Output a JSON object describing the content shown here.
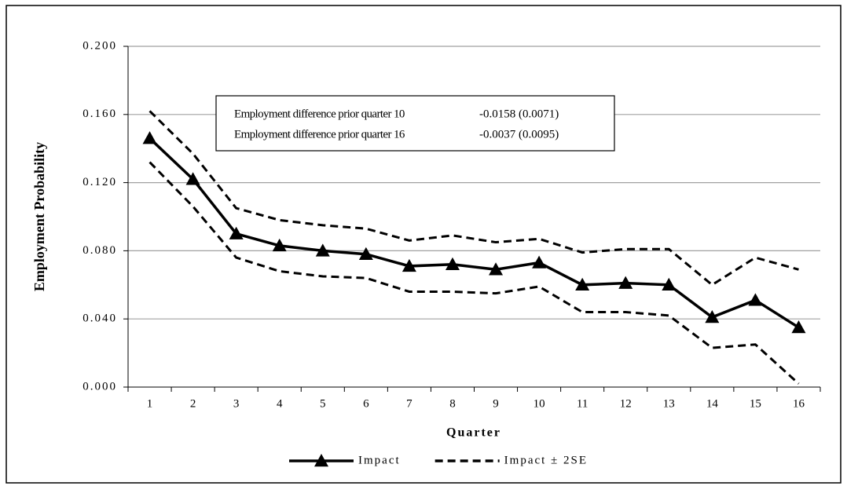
{
  "chart_data": {
    "type": "line",
    "x_label": "Quarter",
    "y_label": "Employment Probability",
    "categories": [
      "1",
      "2",
      "3",
      "4",
      "5",
      "6",
      "7",
      "8",
      "9",
      "10",
      "11",
      "12",
      "13",
      "14",
      "15",
      "16"
    ],
    "series": [
      {
        "name": "Impact",
        "color": "#000000",
        "style": "solid",
        "marker": "triangle",
        "values": [
          0.146,
          0.122,
          0.09,
          0.083,
          0.08,
          0.078,
          0.071,
          0.072,
          0.069,
          0.073,
          0.06,
          0.061,
          0.06,
          0.041,
          0.051,
          0.035
        ]
      },
      {
        "name": "Impact ± 2SE",
        "color": "#000000",
        "style": "dashed",
        "upper": [
          0.162,
          0.137,
          0.105,
          0.098,
          0.095,
          0.093,
          0.086,
          0.089,
          0.085,
          0.087,
          0.079,
          0.081,
          0.081,
          0.06,
          0.076,
          0.069
        ],
        "lower": [
          0.132,
          0.106,
          0.076,
          0.068,
          0.065,
          0.064,
          0.056,
          0.056,
          0.055,
          0.059,
          0.044,
          0.044,
          0.042,
          0.023,
          0.025,
          0.002
        ]
      }
    ],
    "ylim": [
      0,
      0.2
    ],
    "yticks": [
      {
        "value": 0,
        "label": "0.000"
      },
      {
        "value": 0.04,
        "label": "0.040"
      },
      {
        "value": 0.08,
        "label": "0.080"
      },
      {
        "value": 0.12,
        "label": "0.120"
      },
      {
        "value": 0.16,
        "label": "0.160"
      },
      {
        "value": 0.2,
        "label": "0.200"
      }
    ],
    "grid": true,
    "annotations": [
      {
        "label": "Employment difference prior quarter 10",
        "value": "-0.0158 (0.0071)"
      },
      {
        "label": "Employment difference prior quarter 16",
        "value": "-0.0037 (0.0095)"
      }
    ]
  }
}
